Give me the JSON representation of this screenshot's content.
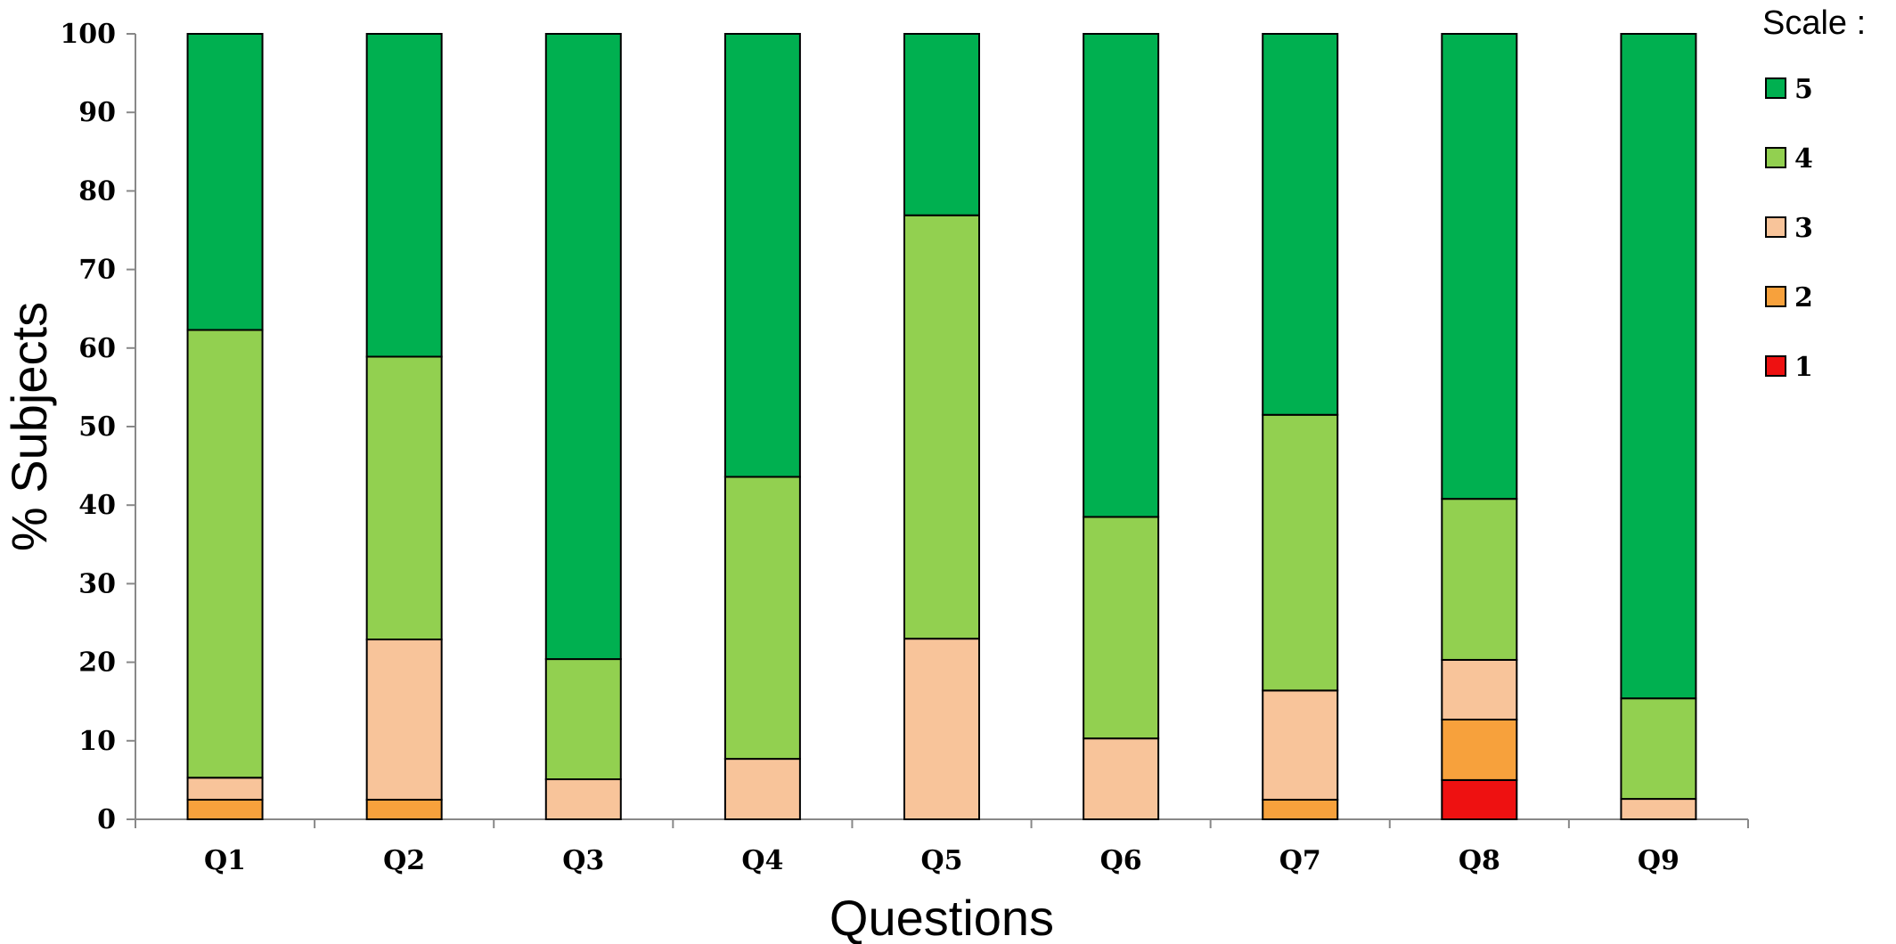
{
  "chart_data": {
    "type": "bar",
    "stacked": true,
    "xlabel": "Questions",
    "ylabel": "% Subjects",
    "ylim": [
      0,
      100
    ],
    "yticks": [
      0,
      10,
      20,
      30,
      40,
      50,
      60,
      70,
      80,
      90,
      100
    ],
    "categories": [
      "Q1",
      "Q2",
      "Q3",
      "Q4",
      "Q5",
      "Q6",
      "Q7",
      "Q8",
      "Q9"
    ],
    "legend": {
      "title": "Scale :",
      "placement": "top-right"
    },
    "grid": false,
    "series": [
      {
        "name": "1",
        "color": "#ee1111",
        "values": [
          0,
          0,
          0,
          0,
          0,
          0,
          0,
          5,
          0
        ]
      },
      {
        "name": "2",
        "color": "#f7a13c",
        "values": [
          2.5,
          2.5,
          0,
          0,
          0,
          0,
          2.5,
          7.7,
          0
        ]
      },
      {
        "name": "3",
        "color": "#f8c49a",
        "values": [
          2.8,
          20.4,
          5.1,
          7.7,
          23,
          10.3,
          13.9,
          7.6,
          2.6
        ]
      },
      {
        "name": "4",
        "color": "#92d050",
        "values": [
          57,
          36,
          15.3,
          35.9,
          53.9,
          28.2,
          35.1,
          20.5,
          12.8
        ]
      },
      {
        "name": "5",
        "color": "#00b050",
        "values": [
          37.7,
          41.1,
          79.6,
          56.4,
          23.1,
          61.5,
          48.5,
          59.2,
          84.6
        ]
      }
    ]
  }
}
